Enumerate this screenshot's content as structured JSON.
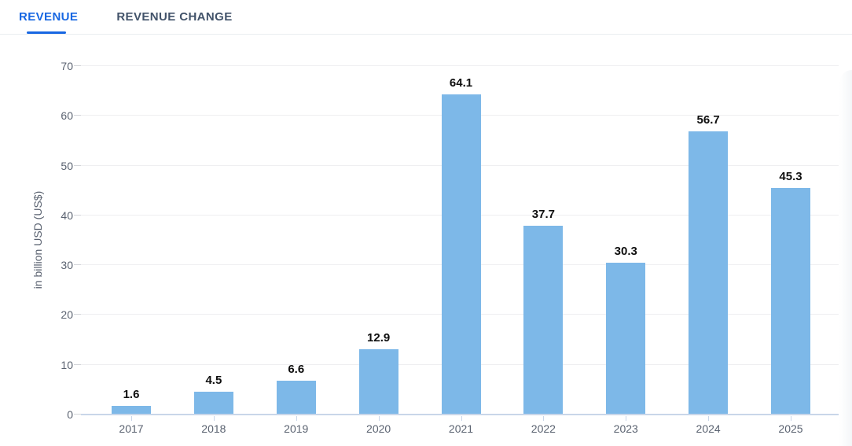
{
  "tabs": [
    {
      "label": "REVENUE",
      "active": true
    },
    {
      "label": "REVENUE CHANGE",
      "active": false
    }
  ],
  "chart_data": {
    "type": "bar",
    "title": "",
    "categories": [
      "2017",
      "2018",
      "2019",
      "2020",
      "2021",
      "2022",
      "2023",
      "2024",
      "2025"
    ],
    "values": [
      1.6,
      4.5,
      6.6,
      12.9,
      64.1,
      37.7,
      30.3,
      56.7,
      45.3
    ],
    "value_labels": [
      "1.6",
      "4.5",
      "6.6",
      "12.9",
      "64.1",
      "37.7",
      "30.3",
      "56.7",
      "45.3"
    ],
    "xlabel": "",
    "ylabel": "in billion USD (US$)",
    "ylim": [
      0,
      70
    ],
    "yticks": [
      0,
      10,
      20,
      30,
      40,
      50,
      60,
      70
    ],
    "grid": true,
    "legend": false,
    "colors": {
      "bar": "#7db8e8",
      "active_tab": "#1767e2",
      "inactive_tab": "#42536a",
      "gridline": "#efeff1",
      "baseline": "#c9d6e9",
      "tick_label": "#5a6270",
      "value_label": "#0f0f0f",
      "divider": "#e9edf0"
    }
  }
}
